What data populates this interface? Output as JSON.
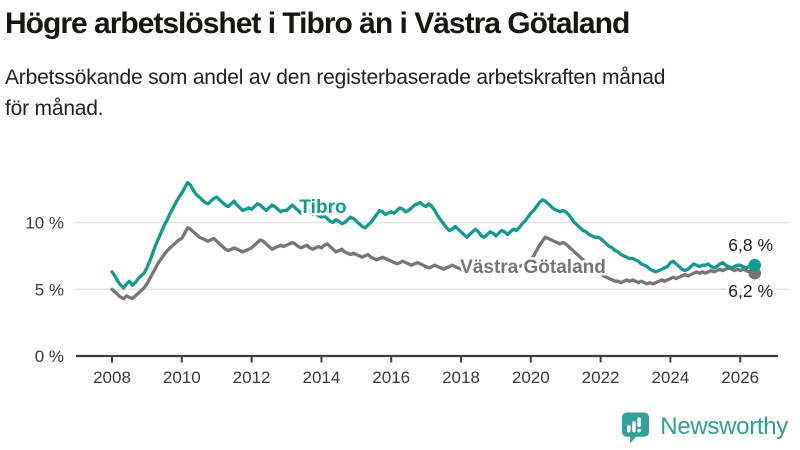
{
  "header": {
    "title": "Högre arbetslöshet i Tibro än i Västra Götaland",
    "subtitle_lines": [
      "Arbetssökande som andel av den registerbaserade arbetskraften månad",
      "för månad."
    ]
  },
  "footer": {
    "brand": "Newsworthy",
    "logo_icon": "newsworthy-speech-bubble-bar-chart-icon"
  },
  "colors": {
    "tibro_line": "#149a8d",
    "vastra_gotaland_line": "#767676",
    "gridline": "#e3e3e3",
    "axis": "#413f3c",
    "tick_text": "#3a3936",
    "value_text": "#22211f",
    "brand_teal": "#2f9e96",
    "logo_teal": "#35a099"
  },
  "chart_data": {
    "type": "line",
    "title": "Högre arbetslöshet i Tibro än i Västra Götaland",
    "xlabel": "",
    "ylabel": "",
    "frequency": "monthly",
    "x_start": {
      "year": 2008,
      "month": 1
    },
    "x_end": {
      "year": 2026,
      "month": 6
    },
    "x_tick_years": [
      2008,
      2010,
      2012,
      2014,
      2016,
      2018,
      2020,
      2022,
      2024,
      2026
    ],
    "y_ticks": [
      {
        "value": 10,
        "label": "10 %"
      },
      {
        "value": 5,
        "label": "5 %"
      },
      {
        "value": 0,
        "label": "0 %"
      }
    ],
    "ylim": [
      0,
      14
    ],
    "grid": true,
    "legend_position": "inline-labels",
    "series": [
      {
        "name": "Tibro",
        "color": "#149a8d",
        "end_label": "6,8 %",
        "end_value": 6.8,
        "values": [
          6.3,
          6.0,
          5.6,
          5.3,
          5.1,
          5.4,
          5.6,
          5.3,
          5.5,
          5.8,
          6.0,
          6.2,
          6.6,
          7.1,
          7.7,
          8.3,
          8.8,
          9.3,
          9.8,
          10.2,
          10.7,
          11.1,
          11.5,
          11.9,
          12.2,
          12.6,
          13.0,
          12.8,
          12.4,
          12.1,
          11.9,
          11.7,
          11.5,
          11.4,
          11.6,
          11.8,
          11.9,
          11.7,
          11.5,
          11.3,
          11.2,
          11.4,
          11.6,
          11.3,
          11.1,
          10.9,
          11.0,
          11.1,
          11.0,
          11.2,
          11.4,
          11.3,
          11.1,
          10.9,
          11.1,
          11.3,
          11.2,
          11.0,
          10.8,
          10.9,
          10.9,
          11.1,
          11.3,
          11.1,
          10.9,
          10.7,
          10.9,
          11.0,
          10.8,
          10.6,
          10.7,
          10.5,
          10.4,
          10.5,
          10.3,
          10.1,
          10.0,
          10.2,
          10.1,
          9.9,
          10.0,
          10.2,
          10.4,
          10.3,
          10.1,
          9.9,
          9.7,
          9.6,
          9.8,
          10.0,
          10.3,
          10.6,
          10.9,
          10.8,
          10.6,
          10.7,
          10.8,
          10.7,
          10.9,
          11.1,
          11.0,
          10.8,
          10.9,
          11.1,
          11.3,
          11.4,
          11.5,
          11.3,
          11.2,
          11.4,
          11.2,
          10.9,
          10.5,
          10.2,
          9.9,
          9.6,
          9.4,
          9.5,
          9.7,
          9.5,
          9.3,
          9.1,
          8.9,
          9.1,
          9.3,
          9.5,
          9.3,
          9.0,
          8.9,
          9.1,
          9.3,
          9.2,
          9.0,
          9.2,
          9.4,
          9.3,
          9.1,
          9.3,
          9.5,
          9.4,
          9.6,
          9.9,
          10.1,
          10.4,
          10.7,
          10.9,
          11.2,
          11.5,
          11.7,
          11.6,
          11.4,
          11.2,
          11.0,
          10.9,
          10.8,
          10.9,
          10.8,
          10.6,
          10.3,
          10.0,
          9.8,
          9.6,
          9.4,
          9.3,
          9.1,
          9.0,
          8.9,
          8.9,
          8.8,
          8.6,
          8.4,
          8.2,
          8.1,
          7.9,
          7.8,
          7.6,
          7.5,
          7.4,
          7.3,
          7.3,
          7.2,
          7.1,
          6.9,
          6.8,
          6.7,
          6.5,
          6.4,
          6.3,
          6.4,
          6.5,
          6.6,
          6.7,
          7.0,
          7.1,
          6.9,
          6.7,
          6.5,
          6.4,
          6.5,
          6.7,
          6.9,
          6.8,
          6.7,
          6.8,
          6.8,
          6.9,
          6.7,
          6.6,
          6.7,
          6.9,
          7.0,
          6.8,
          6.7,
          6.6,
          6.7,
          6.8,
          6.8,
          6.7,
          6.6,
          6.7,
          6.8,
          6.8
        ]
      },
      {
        "name": "Västra Götaland",
        "color": "#767676",
        "end_label": "6,2 %",
        "end_value": 6.2,
        "values": [
          5.0,
          4.8,
          4.6,
          4.4,
          4.3,
          4.5,
          4.4,
          4.3,
          4.5,
          4.7,
          4.9,
          5.1,
          5.4,
          5.8,
          6.2,
          6.6,
          7.0,
          7.3,
          7.6,
          7.9,
          8.1,
          8.3,
          8.5,
          8.7,
          8.8,
          9.2,
          9.6,
          9.5,
          9.3,
          9.1,
          8.9,
          8.8,
          8.7,
          8.6,
          8.7,
          8.8,
          8.6,
          8.4,
          8.2,
          8.0,
          7.9,
          8.0,
          8.1,
          8.0,
          7.9,
          7.8,
          7.9,
          8.0,
          8.1,
          8.3,
          8.5,
          8.7,
          8.6,
          8.4,
          8.2,
          8.0,
          8.1,
          8.2,
          8.3,
          8.2,
          8.3,
          8.4,
          8.5,
          8.4,
          8.2,
          8.1,
          8.2,
          8.3,
          8.1,
          8.0,
          8.1,
          8.2,
          8.1,
          8.3,
          8.4,
          8.2,
          8.0,
          7.8,
          7.9,
          8.0,
          7.8,
          7.7,
          7.6,
          7.7,
          7.6,
          7.5,
          7.4,
          7.5,
          7.6,
          7.4,
          7.3,
          7.2,
          7.3,
          7.4,
          7.3,
          7.2,
          7.1,
          7.0,
          6.9,
          7.0,
          7.1,
          7.0,
          6.9,
          6.8,
          6.9,
          7.0,
          6.9,
          6.8,
          6.7,
          6.6,
          6.7,
          6.8,
          6.7,
          6.6,
          6.5,
          6.6,
          6.7,
          6.8,
          6.7,
          6.6,
          6.5,
          6.4,
          6.5,
          6.6,
          6.5,
          6.4,
          6.3,
          6.4,
          6.5,
          6.4,
          6.5,
          6.6,
          6.5,
          6.4,
          6.5,
          6.6,
          6.5,
          6.6,
          6.7,
          6.6,
          6.7,
          6.8,
          6.9,
          7.0,
          7.2,
          7.5,
          7.9,
          8.3,
          8.6,
          8.9,
          8.8,
          8.7,
          8.6,
          8.5,
          8.4,
          8.5,
          8.4,
          8.2,
          8.0,
          7.8,
          7.6,
          7.4,
          7.2,
          7.0,
          6.8,
          6.6,
          6.5,
          6.4,
          6.2,
          6.0,
          5.9,
          5.8,
          5.7,
          5.6,
          5.6,
          5.5,
          5.6,
          5.7,
          5.6,
          5.7,
          5.6,
          5.5,
          5.6,
          5.5,
          5.4,
          5.5,
          5.4,
          5.5,
          5.6,
          5.7,
          5.6,
          5.7,
          5.8,
          5.9,
          5.8,
          5.9,
          6.0,
          6.1,
          6.0,
          6.1,
          6.2,
          6.3,
          6.2,
          6.3,
          6.2,
          6.3,
          6.4,
          6.3,
          6.4,
          6.5,
          6.4,
          6.5,
          6.6,
          6.5,
          6.4,
          6.5,
          6.4,
          6.5,
          6.4,
          6.3,
          6.2,
          6.2
        ]
      }
    ]
  }
}
